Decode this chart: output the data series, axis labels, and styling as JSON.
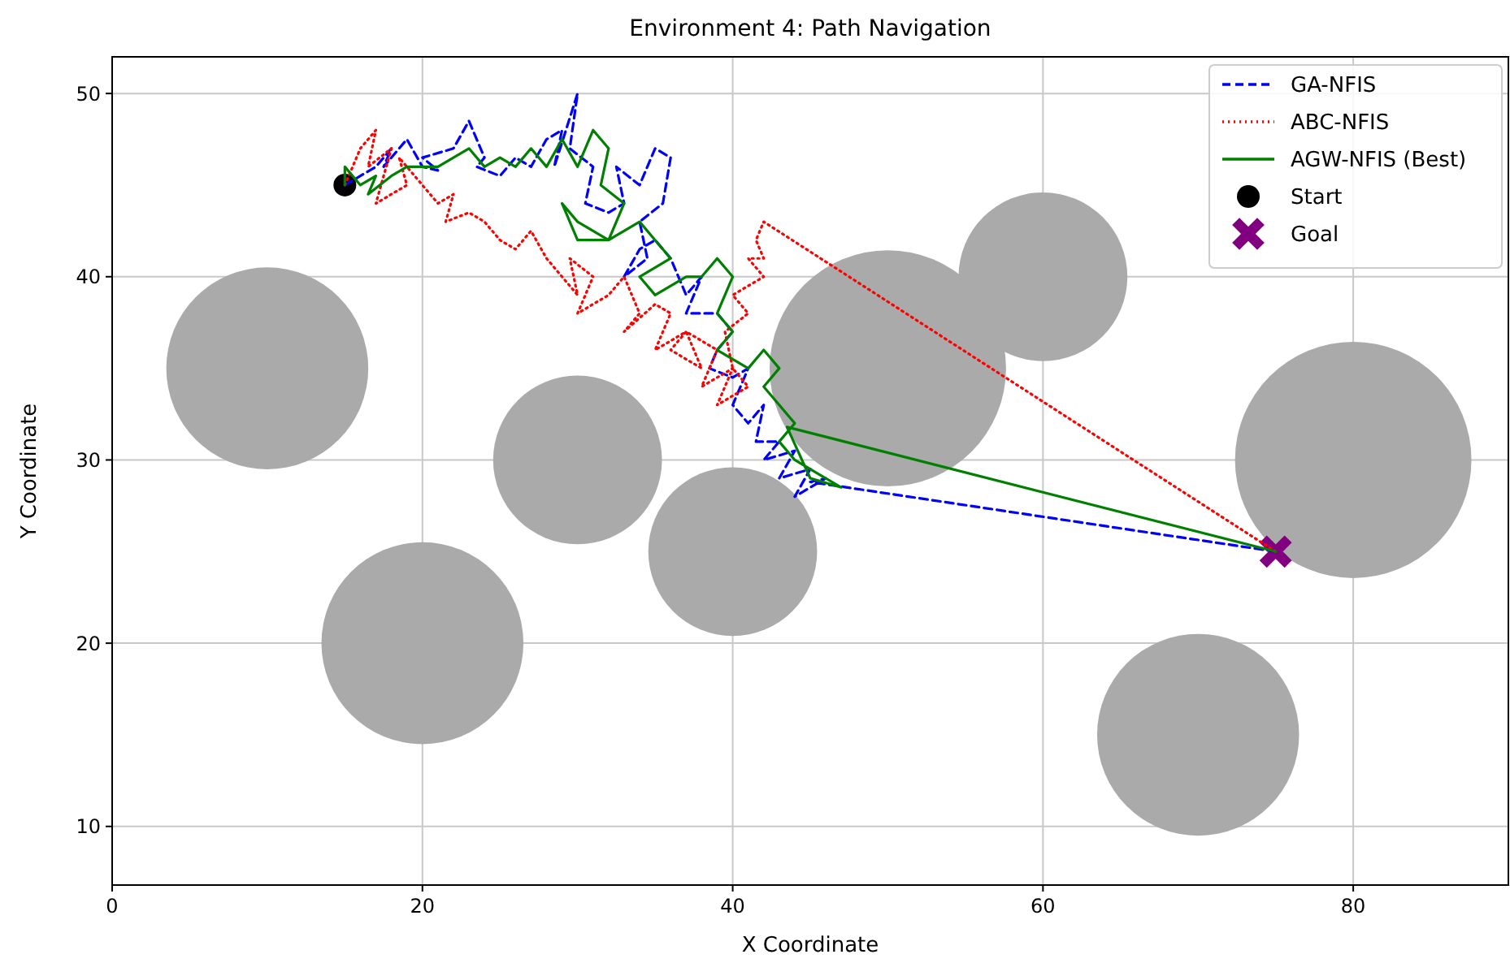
{
  "chart_data": {
    "type": "line",
    "title": "Environment 4: Path Navigation",
    "xlabel": "X Coordinate",
    "ylabel": "Y Coordinate",
    "xlim": [
      0,
      90
    ],
    "ylim": [
      6.8,
      52
    ],
    "xticks": [
      0,
      20,
      40,
      60,
      80
    ],
    "yticks": [
      10,
      20,
      30,
      40,
      50
    ],
    "grid": true,
    "legend": "top right",
    "series": [
      {
        "type": "bubble",
        "color": "#aaaaaa",
        "x": [
          10,
          20,
          30,
          40,
          50,
          60,
          70,
          80
        ],
        "values": [
          35,
          20,
          30,
          25,
          35,
          40,
          15,
          30
        ],
        "sizes": [
          0.73,
          0.73,
          0.51,
          0.51,
          1,
          0.51,
          0.73,
          1
        ]
      },
      {
        "type": "line",
        "name": "GA-NFIS",
        "color": "#0000ff",
        "line_style": "dashed",
        "marker": "none",
        "x": [
          15,
          16,
          17,
          18,
          17.5,
          19,
          20,
          21,
          20,
          22,
          23,
          24,
          23.5,
          25,
          26,
          27,
          28,
          29,
          28.5,
          30,
          29.5,
          31,
          30.5,
          32,
          33,
          32.5,
          34,
          35,
          36,
          35.5,
          34,
          34.5,
          33,
          34,
          35,
          36,
          37,
          38,
          37,
          39,
          40,
          39,
          38.5,
          40,
          41,
          40,
          41,
          42,
          41.5,
          43,
          42,
          44,
          43,
          45,
          44,
          46,
          45,
          75
        ],
        "values": [
          45,
          45.5,
          46,
          47,
          46,
          47.5,
          46,
          45.8,
          46.5,
          47,
          48.5,
          46.5,
          46,
          45.5,
          46.5,
          46,
          47.5,
          48,
          46,
          50,
          47,
          46,
          44,
          43.5,
          44,
          46,
          45,
          47,
          46.5,
          44,
          43,
          41,
          40,
          41.5,
          42,
          41,
          39,
          40,
          38,
          38,
          37,
          36,
          35,
          34.5,
          35,
          33,
          32,
          33,
          31,
          31,
          30,
          30.5,
          29,
          29.5,
          28,
          29,
          28.8,
          25
        ]
      },
      {
        "type": "line",
        "name": "ABC-NFIS",
        "color": "#ff0000",
        "line_style": "dotted",
        "marker": "none",
        "x": [
          15,
          16,
          17,
          16.5,
          18,
          17,
          19,
          18.5,
          20,
          21,
          22,
          21.5,
          23,
          24,
          25,
          26,
          27,
          28,
          29,
          30,
          29.5,
          31,
          30,
          32,
          33,
          34,
          33,
          35,
          36,
          35,
          37,
          36,
          38,
          37,
          39,
          38,
          40,
          39,
          41,
          40,
          39.5,
          41,
          40,
          42,
          41,
          42,
          41.5,
          42,
          75
        ],
        "values": [
          45,
          47,
          48,
          46,
          47,
          44,
          45,
          46.5,
          45,
          44,
          44.5,
          43,
          43.5,
          43,
          42,
          41.5,
          42.5,
          41,
          40,
          39,
          41,
          40,
          38,
          39,
          40,
          38,
          37,
          38.5,
          38,
          36,
          37,
          36,
          35,
          37,
          36,
          34,
          35,
          33,
          34,
          35,
          37,
          38,
          39,
          40,
          41,
          41,
          42,
          43,
          25
        ]
      },
      {
        "name": "AGW-NFIS (Best)",
        "color": "#008000",
        "line_style": "solid",
        "marker": "none",
        "x": [
          15,
          15,
          16,
          17,
          16.5,
          18,
          19,
          21,
          23,
          24,
          25,
          26,
          27,
          28,
          29,
          30,
          31,
          32,
          31.5,
          33,
          32,
          30,
          29,
          30,
          32,
          34,
          35,
          36,
          34,
          35,
          37,
          38,
          39,
          40,
          39,
          40,
          39,
          41,
          42,
          43,
          42,
          43,
          44,
          43,
          44,
          46,
          47,
          45,
          43.5,
          75
        ],
        "values": [
          45,
          46,
          45,
          45.5,
          44.5,
          45.5,
          46,
          46,
          47,
          46,
          46.5,
          46,
          47,
          46,
          47.5,
          46,
          48,
          47,
          45,
          44,
          42,
          43,
          44,
          42,
          42,
          43,
          42,
          41,
          40,
          39,
          40,
          40,
          41,
          40,
          38,
          37,
          36,
          35,
          36,
          35,
          34,
          33,
          32,
          31,
          30,
          29,
          28.5,
          29,
          31.8,
          25
        ]
      },
      {
        "type": "scatter",
        "name": "Start",
        "color": "#000000",
        "marker": "circle",
        "x": [
          15
        ],
        "values": [
          45
        ]
      },
      {
        "type": "scatter",
        "name": "Goal",
        "color": "#800080",
        "marker": "cross",
        "x": [
          75
        ],
        "values": [
          25
        ]
      }
    ]
  }
}
